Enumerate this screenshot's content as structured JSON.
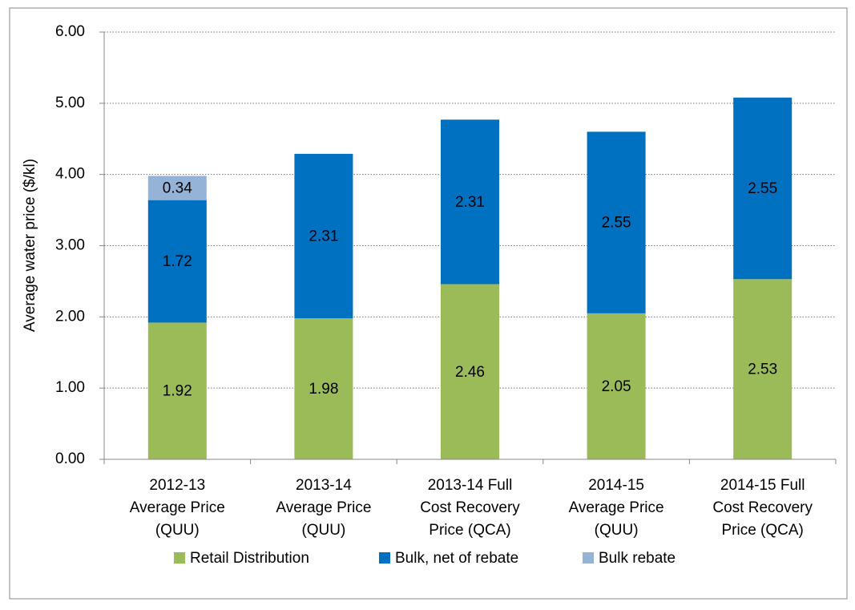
{
  "chart_data": {
    "type": "stacked_bar",
    "y_label": "Average water price ($/kl)",
    "categories": [
      [
        "2012-13",
        "Average Price",
        "(QUU)"
      ],
      [
        "2013-14",
        "Average Price",
        "(QUU)"
      ],
      [
        "2013-14 Full",
        "Cost Recovery",
        "Price (QCA)"
      ],
      [
        "2014-15",
        "Average Price",
        "(QUU)"
      ],
      [
        "2014-15 Full",
        "Cost Recovery",
        "Price (QCA)"
      ]
    ],
    "series": [
      {
        "name": "Retail Distribution",
        "color": "#9bbb59",
        "values": [
          1.92,
          1.98,
          2.46,
          2.05,
          2.53
        ]
      },
      {
        "name": "Bulk, net of rebate",
        "color": "#0070c0",
        "values": [
          1.72,
          2.31,
          2.31,
          2.55,
          2.55
        ]
      },
      {
        "name": "Bulk rebate",
        "color": "#95b3d7",
        "values": [
          0.34,
          null,
          null,
          null,
          null
        ]
      }
    ],
    "ylim": [
      0,
      6
    ],
    "yticks": [
      {
        "value": 0,
        "label": "0.00"
      },
      {
        "value": 1,
        "label": "1.00"
      },
      {
        "value": 2,
        "label": "2.00"
      },
      {
        "value": 3,
        "label": "3.00"
      },
      {
        "value": 4,
        "label": "4.00"
      },
      {
        "value": 5,
        "label": "5.00"
      },
      {
        "value": 6,
        "label": "6.00"
      }
    ],
    "grid": true,
    "legend": "bottom"
  }
}
